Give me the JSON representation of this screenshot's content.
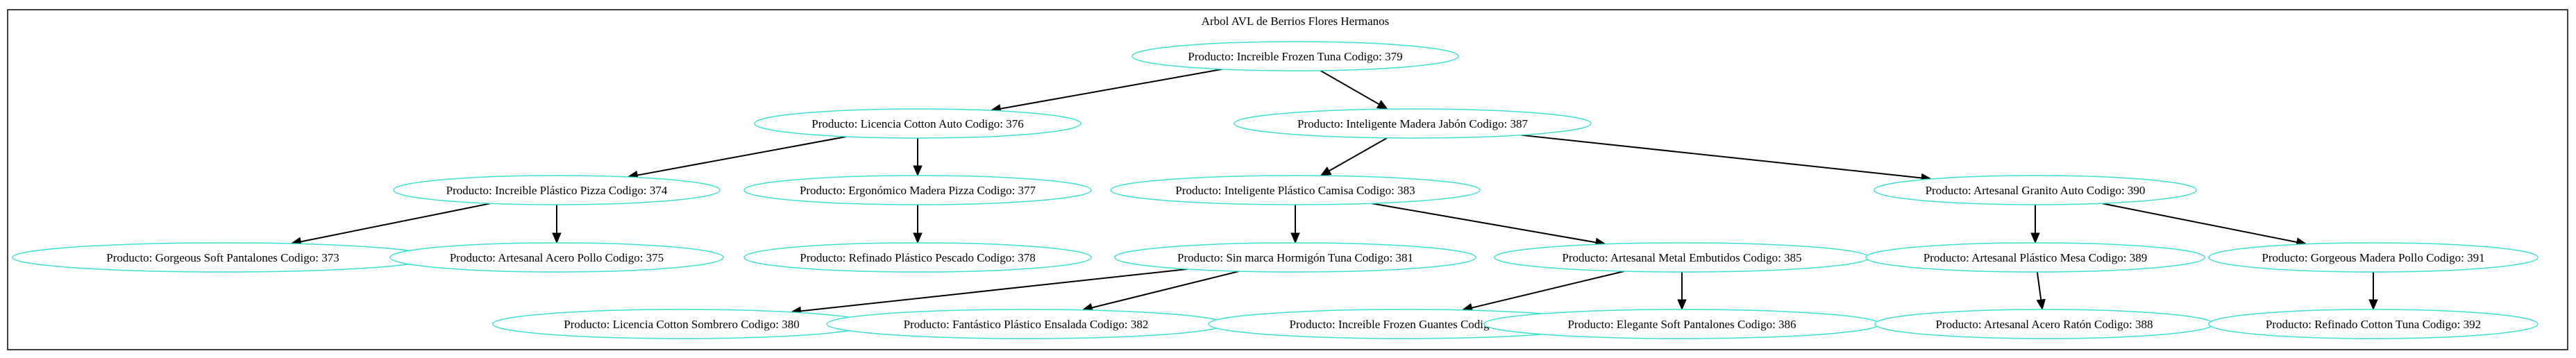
{
  "graph": {
    "title": "Arbol AVL de Berrios Flores Hermanos",
    "node_color": "#40e0d0",
    "edge_color": "#000000",
    "frame_color": "#000000"
  },
  "nodes": [
    {
      "id": "n379",
      "label": "Producto: Increible Frozen Tuna Codigo: 379"
    },
    {
      "id": "n376",
      "label": "Producto: Licencia Cotton Auto Codigo: 376"
    },
    {
      "id": "n387",
      "label": "Producto: Inteligente Madera Jabón Codigo: 387"
    },
    {
      "id": "n374",
      "label": "Producto: Increible Plástico Pizza Codigo: 374"
    },
    {
      "id": "n377",
      "label": "Producto: Ergonómico Madera Pizza Codigo: 377"
    },
    {
      "id": "n383",
      "label": "Producto: Inteligente Plástico Camisa Codigo: 383"
    },
    {
      "id": "n390",
      "label": "Producto: Artesanal Granito Auto Codigo: 390"
    },
    {
      "id": "n373",
      "label": "Producto: Gorgeous Soft Pantalones Codigo: 373"
    },
    {
      "id": "n375",
      "label": "Producto: Artesanal Acero Pollo Codigo: 375"
    },
    {
      "id": "n378",
      "label": "Producto: Refinado Plástico Pescado Codigo: 378"
    },
    {
      "id": "n381",
      "label": "Producto: Sin marca Hormigón Tuna Codigo: 381"
    },
    {
      "id": "n385",
      "label": "Producto: Artesanal Metal Embutidos Codigo: 385"
    },
    {
      "id": "n389",
      "label": "Producto: Artesanal Plástico Mesa Codigo: 389"
    },
    {
      "id": "n391",
      "label": "Producto: Gorgeous Madera Pollo Codigo: 391"
    },
    {
      "id": "n380",
      "label": "Producto: Licencia Cotton Sombrero Codigo: 380"
    },
    {
      "id": "n382",
      "label": "Producto: Fantástico Plástico Ensalada Codigo: 382"
    },
    {
      "id": "n384",
      "label": "Producto: Increible Frozen Guantes Codigo: 384"
    },
    {
      "id": "n386",
      "label": "Producto: Elegante Soft Pantalones Codigo: 386"
    },
    {
      "id": "n388",
      "label": "Producto: Artesanal Acero Ratón Codigo: 388"
    },
    {
      "id": "n392",
      "label": "Producto: Refinado Cotton Tuna Codigo: 392"
    }
  ],
  "edges": [
    {
      "from": "n379",
      "to": "n376"
    },
    {
      "from": "n379",
      "to": "n387"
    },
    {
      "from": "n376",
      "to": "n374"
    },
    {
      "from": "n376",
      "to": "n377"
    },
    {
      "from": "n387",
      "to": "n383"
    },
    {
      "from": "n387",
      "to": "n390"
    },
    {
      "from": "n374",
      "to": "n373"
    },
    {
      "from": "n374",
      "to": "n375"
    },
    {
      "from": "n377",
      "to": "n378"
    },
    {
      "from": "n383",
      "to": "n381"
    },
    {
      "from": "n383",
      "to": "n385"
    },
    {
      "from": "n390",
      "to": "n389"
    },
    {
      "from": "n390",
      "to": "n391"
    },
    {
      "from": "n381",
      "to": "n380"
    },
    {
      "from": "n381",
      "to": "n382"
    },
    {
      "from": "n385",
      "to": "n384"
    },
    {
      "from": "n385",
      "to": "n386"
    },
    {
      "from": "n389",
      "to": "n388"
    },
    {
      "from": "n391",
      "to": "n392"
    }
  ]
}
